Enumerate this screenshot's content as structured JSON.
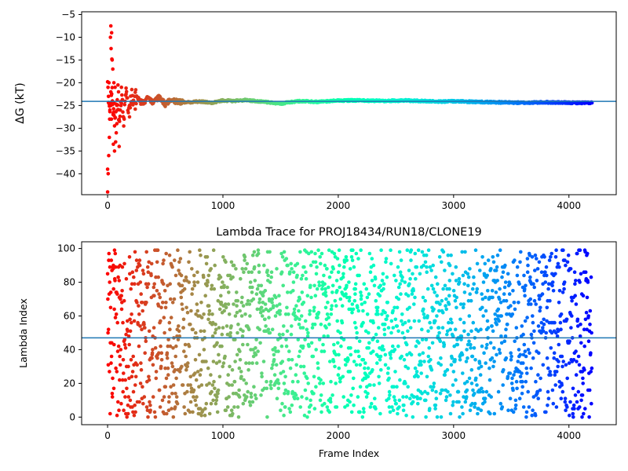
{
  "chart_data": [
    {
      "type": "scatter",
      "title": "",
      "xlabel": "",
      "ylabel": "ΔG (kT)",
      "xlim": [
        -225,
        4410
      ],
      "ylim": [
        -44.6,
        -4.4
      ],
      "x_ticks": [
        0,
        1000,
        2000,
        3000,
        4000
      ],
      "y_ticks": [
        -5,
        -10,
        -15,
        -20,
        -25,
        -30,
        -35,
        -40
      ],
      "reference_line": -24.1,
      "reference_color": "#1f77b4",
      "colormap": "rainbow",
      "grid": false,
      "x_max": 4200,
      "series": [
        {
          "trace": [
            [
              0,
              -20.0
            ],
            [
              20,
              -27.0
            ],
            [
              40,
              -22.0
            ],
            [
              60,
              -30.0
            ],
            [
              80,
              -24.0
            ],
            [
              100,
              -28.0
            ],
            [
              120,
              -23.0
            ],
            [
              140,
              -27.5
            ],
            [
              160,
              -22.5
            ],
            [
              180,
              -26.5
            ],
            [
              200,
              -24.0
            ],
            [
              250,
              -23.0
            ],
            [
              300,
              -24.5
            ],
            [
              350,
              -23.5
            ],
            [
              400,
              -24.5
            ],
            [
              450,
              -23.0
            ],
            [
              500,
              -24.8
            ],
            [
              550,
              -23.5
            ],
            [
              600,
              -24.2
            ],
            [
              700,
              -24.3
            ],
            [
              800,
              -24.1
            ],
            [
              900,
              -24.4
            ],
            [
              1000,
              -23.9
            ],
            [
              1100,
              -24.0
            ],
            [
              1200,
              -23.8
            ],
            [
              1300,
              -24.1
            ],
            [
              1400,
              -24.3
            ],
            [
              1500,
              -24.6
            ],
            [
              1600,
              -24.2
            ],
            [
              1700,
              -24.0
            ],
            [
              1800,
              -24.2
            ],
            [
              1900,
              -24.1
            ],
            [
              2000,
              -23.9
            ],
            [
              2200,
              -23.9
            ],
            [
              2400,
              -24.0
            ],
            [
              2600,
              -23.9
            ],
            [
              2800,
              -24.1
            ],
            [
              3000,
              -24.1
            ],
            [
              3200,
              -24.2
            ],
            [
              3400,
              -24.3
            ],
            [
              3600,
              -24.4
            ],
            [
              3800,
              -24.3
            ],
            [
              4000,
              -24.4
            ],
            [
              4200,
              -24.4
            ]
          ],
          "outliers": [
            [
              0,
              -44.0
            ],
            [
              5,
              -40.0
            ],
            [
              10,
              -36.0
            ],
            [
              15,
              -32.0
            ],
            [
              18,
              -28.0
            ],
            [
              20,
              -26.0
            ],
            [
              25,
              -10.0
            ],
            [
              28,
              -7.5
            ],
            [
              30,
              -12.5
            ],
            [
              35,
              -9.0
            ],
            [
              40,
              -15.0
            ],
            [
              45,
              -17.0
            ],
            [
              50,
              -33.5
            ],
            [
              55,
              -20.0
            ],
            [
              60,
              -35.0
            ],
            [
              70,
              -33.0
            ],
            [
              80,
              -29.0
            ],
            [
              90,
              -20.5
            ],
            [
              100,
              -34.0
            ],
            [
              110,
              -26.0
            ],
            [
              120,
              -21.0
            ],
            [
              140,
              -29.5
            ],
            [
              160,
              -22.5
            ],
            [
              190,
              -27.5
            ],
            [
              210,
              -21.5
            ],
            [
              240,
              -25.8
            ],
            [
              0,
              -39.0
            ],
            [
              8,
              -23.0
            ],
            [
              12,
              -20.0
            ],
            [
              22,
              -25.0
            ],
            [
              28,
              -22.0
            ],
            [
              33,
              -28.0
            ],
            [
              37,
              -14.8
            ],
            [
              42,
              -24.0
            ],
            [
              48,
              -27.0
            ],
            [
              52,
              -26.5
            ],
            [
              58,
              -24.5
            ],
            [
              65,
              -21.0
            ],
            [
              75,
              -31.0
            ],
            [
              85,
              -26.0
            ],
            [
              95,
              -22.0
            ]
          ]
        }
      ]
    },
    {
      "type": "scatter",
      "title": "Lambda Trace for PROJ18434/RUN18/CLONE19",
      "xlabel": "Frame Index",
      "ylabel": "Lambda Index",
      "xlim": [
        -225,
        4410
      ],
      "ylim": [
        -4.5,
        104
      ],
      "x_ticks": [
        0,
        1000,
        2000,
        3000,
        4000
      ],
      "y_ticks": [
        0,
        20,
        40,
        60,
        80,
        100
      ],
      "reference_line": 47,
      "reference_color": "#1f77b4",
      "colormap": "rainbow",
      "grid": false,
      "n_points": 4200,
      "lambda_range": [
        0,
        99
      ],
      "x_max": 4200
    }
  ]
}
